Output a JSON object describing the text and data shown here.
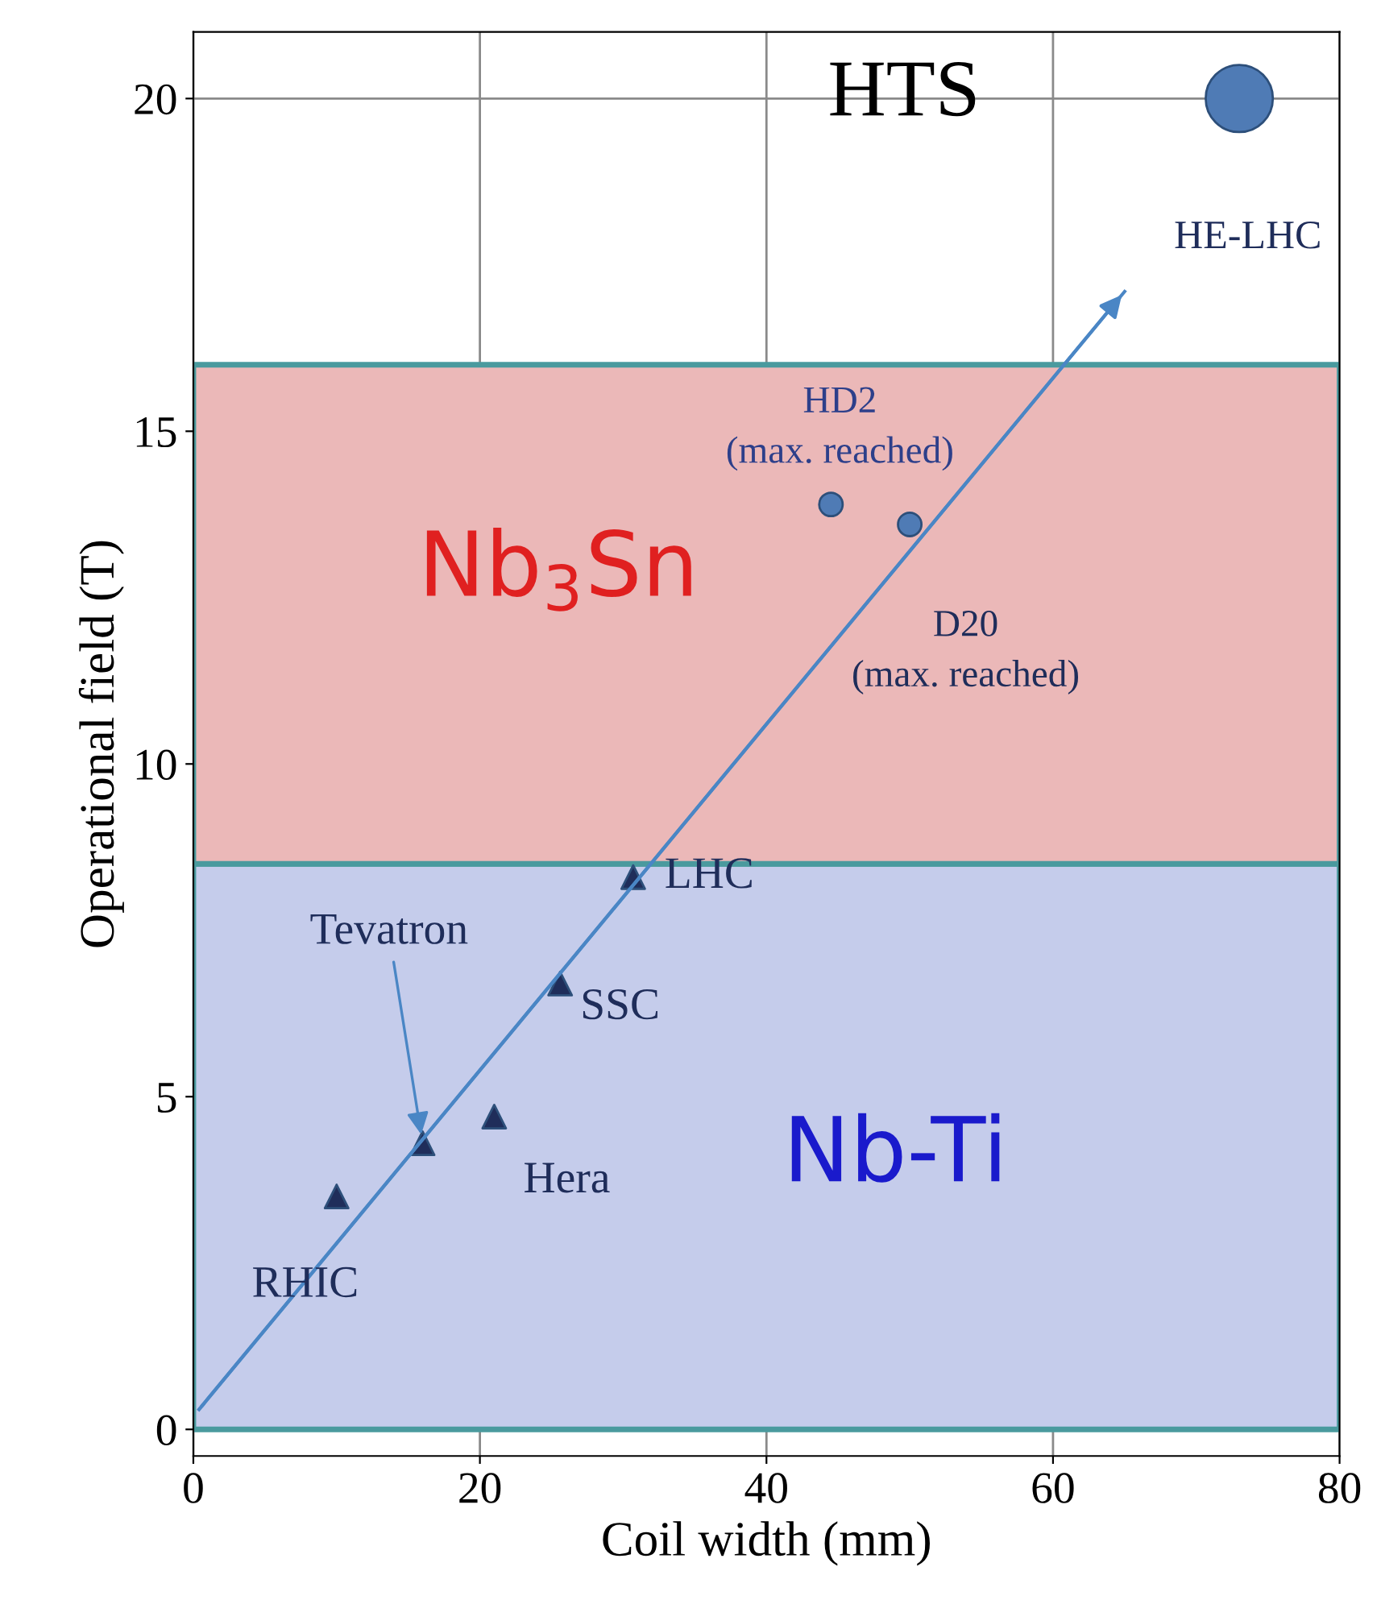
{
  "chart_data": {
    "type": "scatter",
    "xlabel": "Coil width (mm)",
    "ylabel": "Operational field (T)",
    "xlim": [
      0,
      80
    ],
    "ylim": [
      -0.4,
      21
    ],
    "xticks": [
      0,
      20,
      40,
      60,
      80
    ],
    "yticks": [
      0,
      5,
      10,
      15,
      20
    ],
    "grid": true,
    "legend": false,
    "series": [
      {
        "marker": "triangle",
        "color": "#1f2d5a",
        "x": [
          10,
          16,
          21,
          25.6,
          30.7
        ],
        "values": [
          3.5,
          4.3,
          4.7,
          6.7,
          8.3
        ]
      },
      {
        "marker": "circle",
        "color": "#4f7bb5",
        "x": [
          44.5,
          50
        ],
        "values": [
          13.9,
          13.6
        ]
      },
      {
        "marker": "circle",
        "color": "#4f7bb5",
        "x": [
          73
        ],
        "values": [
          20
        ]
      },
      {
        "type": "line",
        "color": "#4a86c5",
        "x": [
          0.4,
          65
        ],
        "values": [
          0.3,
          17.1
        ]
      }
    ],
    "bands": [
      {
        "axis": "y",
        "from": 0,
        "to": 8.5,
        "label": "Nb-Ti",
        "color": "#c5cceb"
      },
      {
        "axis": "y",
        "from": 8.5,
        "to": 16,
        "label": "Nb$_{3}$Sn",
        "color": "#ebb8b8"
      }
    ],
    "annotations": [
      {
        "text": "RHIC",
        "x": 10,
        "y": 3.5
      },
      {
        "text": "Tevatron",
        "x": 16,
        "y": 4.3
      },
      {
        "text": "Hera",
        "x": 21,
        "y": 4.7
      },
      {
        "text": "SSC",
        "x": 25.6,
        "y": 6.7
      },
      {
        "text": "LHC",
        "x": 30.7,
        "y": 8.3
      },
      {
        "text": "HD2\n(max. reached)",
        "x": 44.5,
        "y": 13.9
      },
      {
        "text": "D20\n(max. reached)",
        "x": 50,
        "y": 13.6
      },
      "HTS",
      "HE-LHC"
    ]
  }
}
